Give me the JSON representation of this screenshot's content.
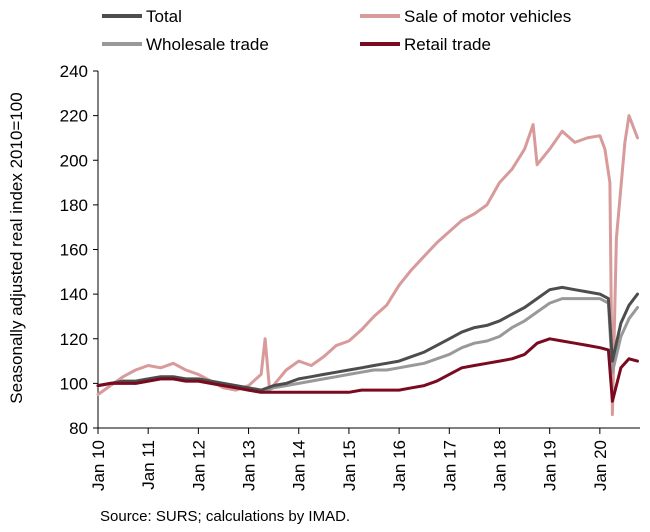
{
  "chart_data": {
    "type": "line",
    "ylabel": "Seasonally adjusted real index 2010=100",
    "xlabel": "",
    "ylim": [
      80,
      240
    ],
    "y_ticks": [
      80,
      100,
      120,
      140,
      160,
      180,
      200,
      220,
      240
    ],
    "x_tick_labels": [
      "Jan 10",
      "Jan 11",
      "Jan 12",
      "Jan 13",
      "Jan 14",
      "Jan 15",
      "Jan 16",
      "Jan 17",
      "Jan 18",
      "Jan 19",
      "Jan 20"
    ],
    "grid": false,
    "legend_position": "top",
    "series": [
      {
        "name": "Total",
        "color": "#4d4d4d",
        "width": 3,
        "points": [
          [
            2010.0,
            99
          ],
          [
            2010.25,
            100
          ],
          [
            2010.5,
            101
          ],
          [
            2010.75,
            101
          ],
          [
            2011.0,
            102
          ],
          [
            2011.25,
            103
          ],
          [
            2011.5,
            103
          ],
          [
            2011.75,
            102
          ],
          [
            2012.0,
            102
          ],
          [
            2012.25,
            101
          ],
          [
            2012.5,
            100
          ],
          [
            2012.75,
            99
          ],
          [
            2013.0,
            98
          ],
          [
            2013.25,
            97
          ],
          [
            2013.5,
            99
          ],
          [
            2013.75,
            100
          ],
          [
            2014.0,
            102
          ],
          [
            2014.25,
            103
          ],
          [
            2014.5,
            104
          ],
          [
            2014.75,
            105
          ],
          [
            2015.0,
            106
          ],
          [
            2015.25,
            107
          ],
          [
            2015.5,
            108
          ],
          [
            2015.75,
            109
          ],
          [
            2016.0,
            110
          ],
          [
            2016.25,
            112
          ],
          [
            2016.5,
            114
          ],
          [
            2016.75,
            117
          ],
          [
            2017.0,
            120
          ],
          [
            2017.25,
            123
          ],
          [
            2017.5,
            125
          ],
          [
            2017.75,
            126
          ],
          [
            2018.0,
            128
          ],
          [
            2018.25,
            131
          ],
          [
            2018.5,
            134
          ],
          [
            2018.75,
            138
          ],
          [
            2019.0,
            142
          ],
          [
            2019.25,
            143
          ],
          [
            2019.5,
            142
          ],
          [
            2019.75,
            141
          ],
          [
            2020.0,
            140
          ],
          [
            2020.17,
            138
          ],
          [
            2020.25,
            110
          ],
          [
            2020.42,
            127
          ],
          [
            2020.58,
            135
          ],
          [
            2020.75,
            140
          ]
        ]
      },
      {
        "name": "Sale of motor vehicles",
        "color": "#d89a9a",
        "width": 3,
        "points": [
          [
            2010.0,
            95
          ],
          [
            2010.25,
            99
          ],
          [
            2010.5,
            103
          ],
          [
            2010.75,
            106
          ],
          [
            2011.0,
            108
          ],
          [
            2011.25,
            107
          ],
          [
            2011.5,
            109
          ],
          [
            2011.75,
            106
          ],
          [
            2012.0,
            104
          ],
          [
            2012.25,
            101
          ],
          [
            2012.5,
            98
          ],
          [
            2012.75,
            97
          ],
          [
            2013.0,
            99
          ],
          [
            2013.25,
            104
          ],
          [
            2013.33,
            120
          ],
          [
            2013.42,
            97
          ],
          [
            2013.75,
            106
          ],
          [
            2014.0,
            110
          ],
          [
            2014.25,
            108
          ],
          [
            2014.5,
            112
          ],
          [
            2014.75,
            117
          ],
          [
            2015.0,
            119
          ],
          [
            2015.25,
            124
          ],
          [
            2015.5,
            130
          ],
          [
            2015.75,
            135
          ],
          [
            2016.0,
            144
          ],
          [
            2016.25,
            151
          ],
          [
            2016.5,
            157
          ],
          [
            2016.75,
            163
          ],
          [
            2017.0,
            168
          ],
          [
            2017.25,
            173
          ],
          [
            2017.5,
            176
          ],
          [
            2017.75,
            180
          ],
          [
            2018.0,
            190
          ],
          [
            2018.25,
            196
          ],
          [
            2018.5,
            205
          ],
          [
            2018.67,
            216
          ],
          [
            2018.75,
            198
          ],
          [
            2019.0,
            205
          ],
          [
            2019.25,
            213
          ],
          [
            2019.5,
            208
          ],
          [
            2019.75,
            210
          ],
          [
            2020.0,
            211
          ],
          [
            2020.1,
            205
          ],
          [
            2020.2,
            190
          ],
          [
            2020.25,
            86
          ],
          [
            2020.33,
            165
          ],
          [
            2020.5,
            208
          ],
          [
            2020.58,
            220
          ],
          [
            2020.75,
            210
          ]
        ]
      },
      {
        "name": "Wholesale trade",
        "color": "#999999",
        "width": 3,
        "points": [
          [
            2010.0,
            99
          ],
          [
            2010.25,
            100
          ],
          [
            2010.5,
            101
          ],
          [
            2010.75,
            100
          ],
          [
            2011.0,
            101
          ],
          [
            2011.25,
            102
          ],
          [
            2011.5,
            102
          ],
          [
            2011.75,
            101
          ],
          [
            2012.0,
            101
          ],
          [
            2012.25,
            100
          ],
          [
            2012.5,
            99
          ],
          [
            2012.75,
            98
          ],
          [
            2013.0,
            97
          ],
          [
            2013.25,
            96
          ],
          [
            2013.5,
            98
          ],
          [
            2013.75,
            99
          ],
          [
            2014.0,
            100
          ],
          [
            2014.25,
            101
          ],
          [
            2014.5,
            102
          ],
          [
            2014.75,
            103
          ],
          [
            2015.0,
            104
          ],
          [
            2015.25,
            105
          ],
          [
            2015.5,
            106
          ],
          [
            2015.75,
            106
          ],
          [
            2016.0,
            107
          ],
          [
            2016.25,
            108
          ],
          [
            2016.5,
            109
          ],
          [
            2016.75,
            111
          ],
          [
            2017.0,
            113
          ],
          [
            2017.25,
            116
          ],
          [
            2017.5,
            118
          ],
          [
            2017.75,
            119
          ],
          [
            2018.0,
            121
          ],
          [
            2018.25,
            125
          ],
          [
            2018.5,
            128
          ],
          [
            2018.75,
            132
          ],
          [
            2019.0,
            136
          ],
          [
            2019.25,
            138
          ],
          [
            2019.5,
            138
          ],
          [
            2019.75,
            138
          ],
          [
            2020.0,
            138
          ],
          [
            2020.17,
            136
          ],
          [
            2020.25,
            105
          ],
          [
            2020.42,
            121
          ],
          [
            2020.58,
            129
          ],
          [
            2020.75,
            134
          ]
        ]
      },
      {
        "name": "Retail trade",
        "color": "#7a0a20",
        "width": 3,
        "points": [
          [
            2010.0,
            99
          ],
          [
            2010.25,
            100
          ],
          [
            2010.5,
            100
          ],
          [
            2010.75,
            100
          ],
          [
            2011.0,
            101
          ],
          [
            2011.25,
            102
          ],
          [
            2011.5,
            102
          ],
          [
            2011.75,
            101
          ],
          [
            2012.0,
            101
          ],
          [
            2012.25,
            100
          ],
          [
            2012.5,
            99
          ],
          [
            2012.75,
            98
          ],
          [
            2013.0,
            97
          ],
          [
            2013.25,
            96
          ],
          [
            2013.5,
            96
          ],
          [
            2013.75,
            96
          ],
          [
            2014.0,
            96
          ],
          [
            2014.25,
            96
          ],
          [
            2014.5,
            96
          ],
          [
            2014.75,
            96
          ],
          [
            2015.0,
            96
          ],
          [
            2015.25,
            97
          ],
          [
            2015.5,
            97
          ],
          [
            2015.75,
            97
          ],
          [
            2016.0,
            97
          ],
          [
            2016.25,
            98
          ],
          [
            2016.5,
            99
          ],
          [
            2016.75,
            101
          ],
          [
            2017.0,
            104
          ],
          [
            2017.25,
            107
          ],
          [
            2017.5,
            108
          ],
          [
            2017.75,
            109
          ],
          [
            2018.0,
            110
          ],
          [
            2018.25,
            111
          ],
          [
            2018.5,
            113
          ],
          [
            2018.75,
            118
          ],
          [
            2019.0,
            120
          ],
          [
            2019.25,
            119
          ],
          [
            2019.5,
            118
          ],
          [
            2019.75,
            117
          ],
          [
            2020.0,
            116
          ],
          [
            2020.17,
            115
          ],
          [
            2020.25,
            92
          ],
          [
            2020.42,
            107
          ],
          [
            2020.58,
            111
          ],
          [
            2020.75,
            110
          ]
        ]
      }
    ]
  },
  "source_note": "Source: SURS; calculations by IMAD."
}
